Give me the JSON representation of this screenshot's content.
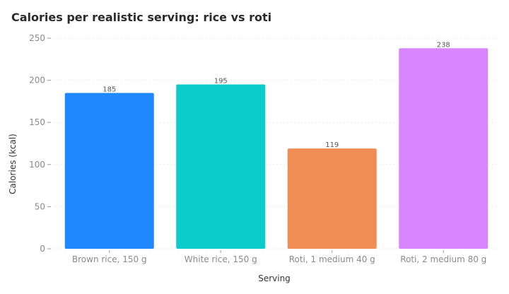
{
  "chart_data": {
    "type": "bar",
    "title": "Calories per realistic serving: rice vs roti",
    "xlabel": "Serving",
    "ylabel": "Calories (kcal)",
    "categories": [
      "Brown rice, 150 g",
      "White rice, 150 g",
      "Roti, 1 medium 40 g",
      "Roti, 2 medium 80 g"
    ],
    "values": [
      185,
      195,
      119,
      238
    ],
    "data_labels": [
      "185",
      "195",
      "119",
      "238"
    ],
    "colors": [
      "#1f88fe",
      "#0bcbcb",
      "#ef8d55",
      "#d786ff"
    ],
    "ylim": [
      0,
      250
    ],
    "yticks": [
      0,
      50,
      100,
      150,
      200,
      250
    ],
    "grid": true,
    "legend": "none"
  }
}
